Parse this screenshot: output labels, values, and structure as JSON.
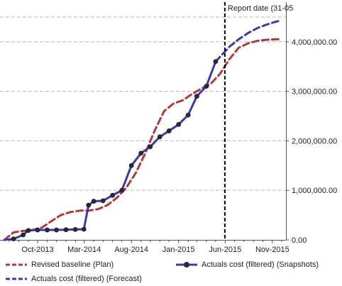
{
  "chart_data": {
    "type": "line",
    "x_tick_labels": [
      "Oct-2013",
      "Mar-2014",
      "Aug-2014",
      "Jan-2015",
      "Jun-2015",
      "Nov-2015"
    ],
    "y_tick_labels": [
      "0.00",
      "1,000,000.00",
      "2,000,000.00",
      "3,000,000.00",
      "4,000,000.00"
    ],
    "ylim": [
      0,
      4800000
    ],
    "xlim": [
      "2013-06-01",
      "2015-12-15"
    ],
    "y_axis_side": "right",
    "grid": "horizontal dashed",
    "annotation": {
      "label": "Report date (31-05",
      "date": "2015-05-31",
      "style": "black dashed vertical line"
    },
    "series": [
      {
        "name": "Revised baseline (Plan)",
        "color": "#b03a3a",
        "style": "dashed",
        "points": [
          [
            "2013-06-15",
            0
          ],
          [
            "2013-07-15",
            150000
          ],
          [
            "2013-08-15",
            180000
          ],
          [
            "2013-09-15",
            200000
          ],
          [
            "2013-10-15",
            250000
          ],
          [
            "2013-11-15",
            380000
          ],
          [
            "2013-12-15",
            500000
          ],
          [
            "2014-01-15",
            560000
          ],
          [
            "2014-02-15",
            590000
          ],
          [
            "2014-03-15",
            590000
          ],
          [
            "2014-04-15",
            620000
          ],
          [
            "2014-05-15",
            700000
          ],
          [
            "2014-06-15",
            850000
          ],
          [
            "2014-07-15",
            1050000
          ],
          [
            "2014-08-15",
            1350000
          ],
          [
            "2014-09-15",
            1750000
          ],
          [
            "2014-10-15",
            2200000
          ],
          [
            "2014-11-15",
            2600000
          ],
          [
            "2014-12-15",
            2750000
          ],
          [
            "2015-01-15",
            2820000
          ],
          [
            "2015-02-15",
            2950000
          ],
          [
            "2015-03-15",
            3050000
          ],
          [
            "2015-04-15",
            3150000
          ],
          [
            "2015-05-15",
            3350000
          ],
          [
            "2015-06-15",
            3650000
          ],
          [
            "2015-07-15",
            3880000
          ],
          [
            "2015-08-15",
            3970000
          ],
          [
            "2015-09-15",
            4020000
          ],
          [
            "2015-10-15",
            4040000
          ],
          [
            "2015-11-15",
            4050000
          ],
          [
            "2015-12-01",
            4050000
          ]
        ]
      },
      {
        "name": "Actuals cost (filtered) (Snapshots)",
        "color": "#3a3aa8",
        "style": "solid with markers",
        "points": [
          [
            "2013-06-15",
            0
          ],
          [
            "2013-07-15",
            20000
          ],
          [
            "2013-08-15",
            100000
          ],
          [
            "2013-09-01",
            190000
          ],
          [
            "2013-10-01",
            200000
          ],
          [
            "2013-11-01",
            200000
          ],
          [
            "2013-12-01",
            200000
          ],
          [
            "2014-01-01",
            205000
          ],
          [
            "2014-01-31",
            210000
          ],
          [
            "2014-02-28",
            215000
          ],
          [
            "2014-03-15",
            700000
          ],
          [
            "2014-04-01",
            780000
          ],
          [
            "2014-05-01",
            790000
          ],
          [
            "2014-06-01",
            900000
          ],
          [
            "2014-07-01",
            1000000
          ],
          [
            "2014-08-01",
            1500000
          ],
          [
            "2014-09-01",
            1750000
          ],
          [
            "2014-10-01",
            1880000
          ],
          [
            "2014-11-01",
            2080000
          ],
          [
            "2014-12-01",
            2200000
          ],
          [
            "2015-01-01",
            2330000
          ],
          [
            "2015-02-01",
            2520000
          ],
          [
            "2015-03-01",
            2900000
          ],
          [
            "2015-04-01",
            3100000
          ],
          [
            "2015-05-01",
            3600000
          ]
        ]
      },
      {
        "name": "Actuals cost (filtered) (Forecast)",
        "color": "#3a3aa8",
        "style": "dashed",
        "points": [
          [
            "2015-05-01",
            3600000
          ],
          [
            "2015-06-15",
            3900000
          ],
          [
            "2015-07-15",
            4050000
          ],
          [
            "2015-08-15",
            4180000
          ],
          [
            "2015-09-15",
            4280000
          ],
          [
            "2015-10-15",
            4350000
          ],
          [
            "2015-11-15",
            4410000
          ],
          [
            "2015-12-01",
            4430000
          ]
        ]
      }
    ],
    "legend": {
      "position": "bottom",
      "items": [
        {
          "label": "Revised baseline (Plan)",
          "marker": "dashed",
          "color": "#b03a3a"
        },
        {
          "label": "Actuals cost (filtered) (Snapshots)",
          "marker": "solid-dot",
          "color": "#3a3aa8"
        },
        {
          "label": "Actuals cost (filtered) (Forecast)",
          "marker": "dashed",
          "color": "#3a3aa8"
        }
      ]
    }
  }
}
